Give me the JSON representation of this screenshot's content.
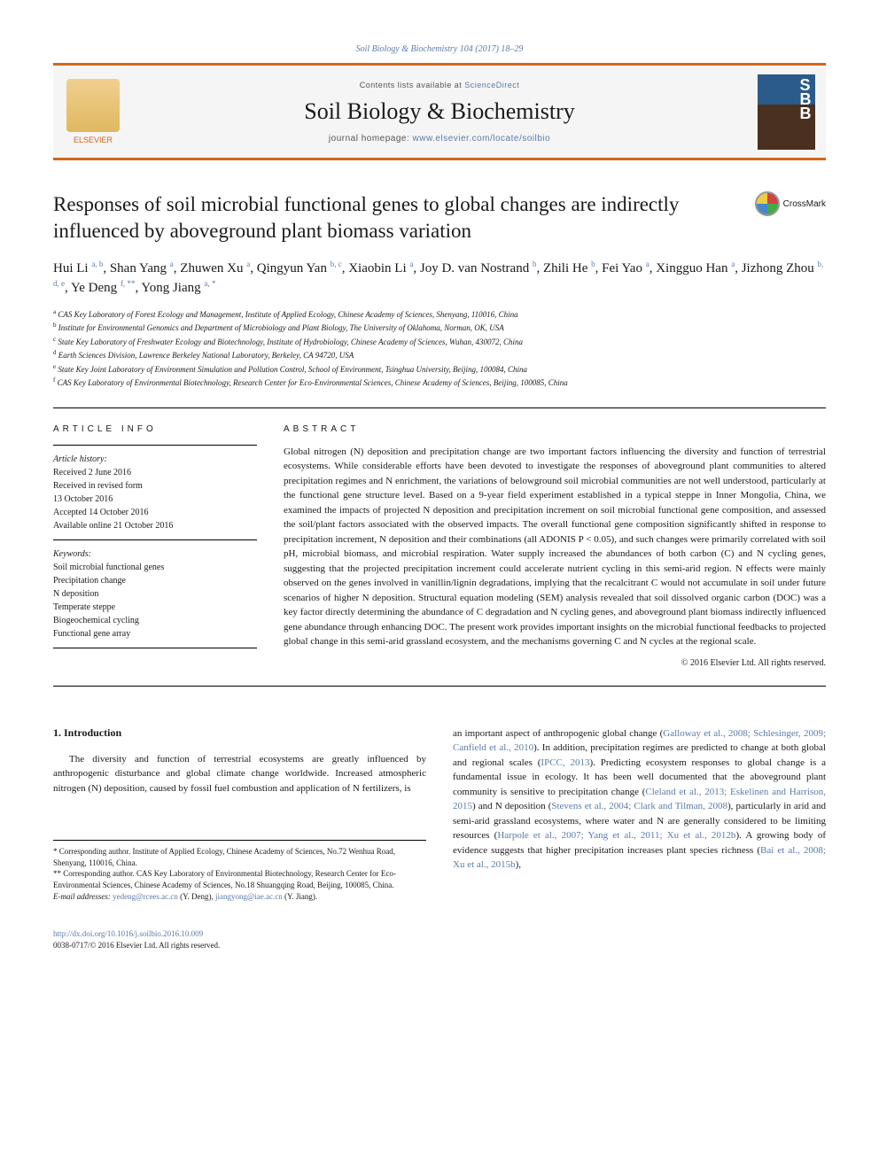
{
  "citation": "Soil Biology & Biochemistry 104 (2017) 18–29",
  "banner": {
    "contents_prefix": "Contents lists available at ",
    "contents_link": "ScienceDirect",
    "journal": "Soil Biology & Biochemistry",
    "homepage_prefix": "journal homepage: ",
    "homepage_link": "www.elsevier.com/locate/soilbio",
    "publisher": "ELSEVIER",
    "cover_letters": "S\nB\nB"
  },
  "crossmark_label": "CrossMark",
  "title": "Responses of soil microbial functional genes to global changes are indirectly influenced by aboveground plant biomass variation",
  "authors_html": "Hui Li <span class='sup'>a, b</span>, Shan Yang <span class='sup'>a</span>, Zhuwen Xu <span class='sup'>a</span>, Qingyun Yan <span class='sup'>b, c</span>, Xiaobin Li <span class='sup'>a</span>, Joy D. van Nostrand <span class='sup'>b</span>, Zhili He <span class='sup'>b</span>, Fei Yao <span class='sup'>a</span>, Xingguo Han <span class='sup'>a</span>, Jizhong Zhou <span class='sup'>b, d, e</span>, Ye Deng <span class='sup'>f, **</span>, Yong Jiang <span class='sup'>a, *</span>",
  "affiliations": [
    {
      "sup": "a",
      "text": "CAS Key Laboratory of Forest Ecology and Management, Institute of Applied Ecology, Chinese Academy of Sciences, Shenyang, 110016, China"
    },
    {
      "sup": "b",
      "text": "Institute for Environmental Genomics and Department of Microbiology and Plant Biology, The University of Oklahoma, Norman, OK, USA"
    },
    {
      "sup": "c",
      "text": "State Key Laboratory of Freshwater Ecology and Biotechnology, Institute of Hydrobiology, Chinese Academy of Sciences, Wuhan, 430072, China"
    },
    {
      "sup": "d",
      "text": "Earth Sciences Division, Lawrence Berkeley National Laboratory, Berkeley, CA 94720, USA"
    },
    {
      "sup": "e",
      "text": "State Key Joint Laboratory of Environment Simulation and Pollution Control, School of Environment, Tsinghua University, Beijing, 100084, China"
    },
    {
      "sup": "f",
      "text": "CAS Key Laboratory of Environmental Biotechnology, Research Center for Eco-Environmental Sciences, Chinese Academy of Sciences, Beijing, 100085, China"
    }
  ],
  "info_label": "ARTICLE INFO",
  "abstract_label": "ABSTRACT",
  "history": {
    "heading": "Article history:",
    "lines": [
      "Received 2 June 2016",
      "Received in revised form",
      "13 October 2016",
      "Accepted 14 October 2016",
      "Available online 21 October 2016"
    ]
  },
  "keywords": {
    "heading": "Keywords:",
    "items": [
      "Soil microbial functional genes",
      "Precipitation change",
      "N deposition",
      "Temperate steppe",
      "Biogeochemical cycling",
      "Functional gene array"
    ]
  },
  "abstract": "Global nitrogen (N) deposition and precipitation change are two important factors influencing the diversity and function of terrestrial ecosystems. While considerable efforts have been devoted to investigate the responses of aboveground plant communities to altered precipitation regimes and N enrichment, the variations of belowground soil microbial communities are not well understood, particularly at the functional gene structure level. Based on a 9-year field experiment established in a typical steppe in Inner Mongolia, China, we examined the impacts of projected N deposition and precipitation increment on soil microbial functional gene composition, and assessed the soil/plant factors associated with the observed impacts. The overall functional gene composition significantly shifted in response to precipitation increment, N deposition and their combinations (all ADONIS P < 0.05), and such changes were primarily correlated with soil pH, microbial biomass, and microbial respiration. Water supply increased the abundances of both carbon (C) and N cycling genes, suggesting that the projected precipitation increment could accelerate nutrient cycling in this semi-arid region. N effects were mainly observed on the genes involved in vanillin/lignin degradations, implying that the recalcitrant C would not accumulate in soil under future scenarios of higher N deposition. Structural equation modeling (SEM) analysis revealed that soil dissolved organic carbon (DOC) was a key factor directly determining the abundance of C degradation and N cycling genes, and aboveground plant biomass indirectly influenced gene abundance through enhancing DOC. The present work provides important insights on the microbial functional feedbacks to projected global change in this semi-arid grassland ecosystem, and the mechanisms governing C and N cycles at the regional scale.",
  "copyright": "© 2016 Elsevier Ltd. All rights reserved.",
  "intro_heading": "1.  Introduction",
  "intro_col1": "The diversity and function of terrestrial ecosystems are greatly influenced by anthropogenic disturbance and global climate change worldwide. Increased atmospheric nitrogen (N) deposition, caused by fossil fuel combustion and application of N fertilizers, is",
  "intro_col2_html": "an important aspect of anthropogenic global change (<a href='#'>Galloway et al., 2008; Schlesinger, 2009; Canfield et al., 2010</a>). In addition, precipitation regimes are predicted to change at both global and regional scales (<a href='#'>IPCC, 2013</a>). Predicting ecosystem responses to global change is a fundamental issue in ecology. It has been well documented that the aboveground plant community is sensitive to precipitation change (<a href='#'>Cleland et al., 2013; Eskelinen and Harrison, 2015</a>) and N deposition (<a href='#'>Stevens et al., 2004; Clark and Tilman, 2008</a>), particularly in arid and semi-arid grassland ecosystems, where water and N are generally considered to be limiting resources (<a href='#'>Harpole et al., 2007; Yang et al., 2011; Xu et al., 2012b</a>). A growing body of evidence suggests that higher precipitation increases plant species richness (<a href='#'>Bai et al., 2008; Xu et al., 2015b</a>),",
  "footnotes": {
    "corr1": "* Corresponding author. Institute of Applied Ecology, Chinese Academy of Sciences, No.72 Wenhua Road, Shenyang, 110016, China.",
    "corr2": "** Corresponding author. CAS Key Laboratory of Environmental Biotechnology, Research Center for Eco-Environmental Sciences, Chinese Academy of Sciences, No.18 Shuangqing Road, Beijing, 100085, China.",
    "email_label": "E-mail addresses: ",
    "email1": "yedeng@rcees.ac.cn",
    "email1_name": " (Y. Deng), ",
    "email2": "jiangyong@iae.ac.cn",
    "email2_name": " (Y. Jiang)."
  },
  "footer": {
    "doi": "http://dx.doi.org/10.1016/j.soilbio.2016.10.009",
    "issn": "0038-0717/© 2016 Elsevier Ltd. All rights reserved."
  }
}
